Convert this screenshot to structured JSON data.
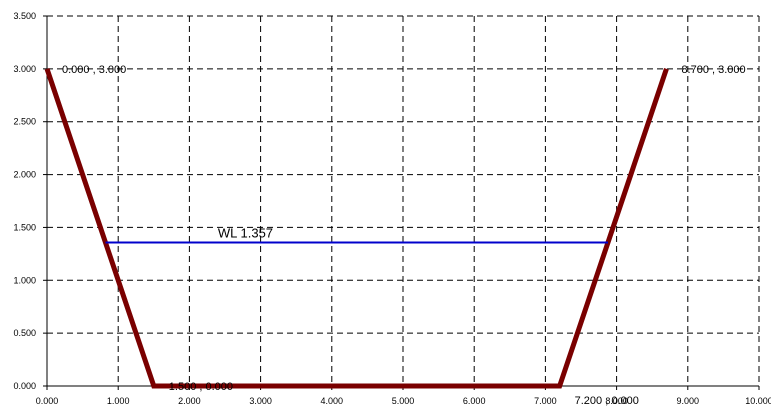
{
  "chart_data": {
    "type": "line",
    "xlim": [
      0,
      10
    ],
    "ylim": [
      0,
      3.5
    ],
    "x_ticks": [
      "0.000",
      "1.000",
      "2.000",
      "3.000",
      "4.000",
      "5.000",
      "6.000",
      "7.000",
      "8.000",
      "9.000",
      "10.000"
    ],
    "y_ticks": [
      "0.000",
      "0.500",
      "1.000",
      "1.500",
      "2.000",
      "2.500",
      "3.000",
      "3.500"
    ],
    "x_tick_values": [
      0,
      1,
      2,
      3,
      4,
      5,
      6,
      7,
      8,
      9,
      10
    ],
    "y_tick_values": [
      0,
      0.5,
      1,
      1.5,
      2,
      2.5,
      3,
      3.5
    ],
    "grid": true,
    "grid_style": "dashed",
    "series": [
      {
        "type": "line",
        "color": "#7a0000",
        "points": [
          {
            "x": 0.0,
            "y": 3.0
          },
          {
            "x": 1.5,
            "y": 0.0
          },
          {
            "x": 7.2,
            "y": 0.0
          },
          {
            "x": 8.7,
            "y": 3.0
          }
        ]
      },
      {
        "type": "line",
        "color": "#0000cc",
        "points": [
          {
            "x": 0.8215,
            "y": 1.357
          },
          {
            "x": 7.8785,
            "y": 1.357
          }
        ]
      }
    ],
    "annotations": [
      {
        "text": "0.000 , 3.000",
        "x": 0.0,
        "y": 3.0,
        "anchor": "start",
        "dx": 1.0,
        "dy": 0.3
      },
      {
        "text": "1.500 , 0.000",
        "x": 1.5,
        "y": 0.0,
        "anchor": "start",
        "dx": 1.0,
        "dy": 0.3
      },
      {
        "text": "7.200 , 0.000",
        "x": 7.2,
        "y": 0.0,
        "anchor": "start",
        "dx": 1.0,
        "dy": 1.6
      },
      {
        "text": "8.700 , 3.000",
        "x": 8.7,
        "y": 3.0,
        "anchor": "start",
        "dx": 1.0,
        "dy": 0.3
      }
    ],
    "water_level_label": {
      "text": "WL 1.357",
      "x": 2.4,
      "y": 1.357
    }
  }
}
